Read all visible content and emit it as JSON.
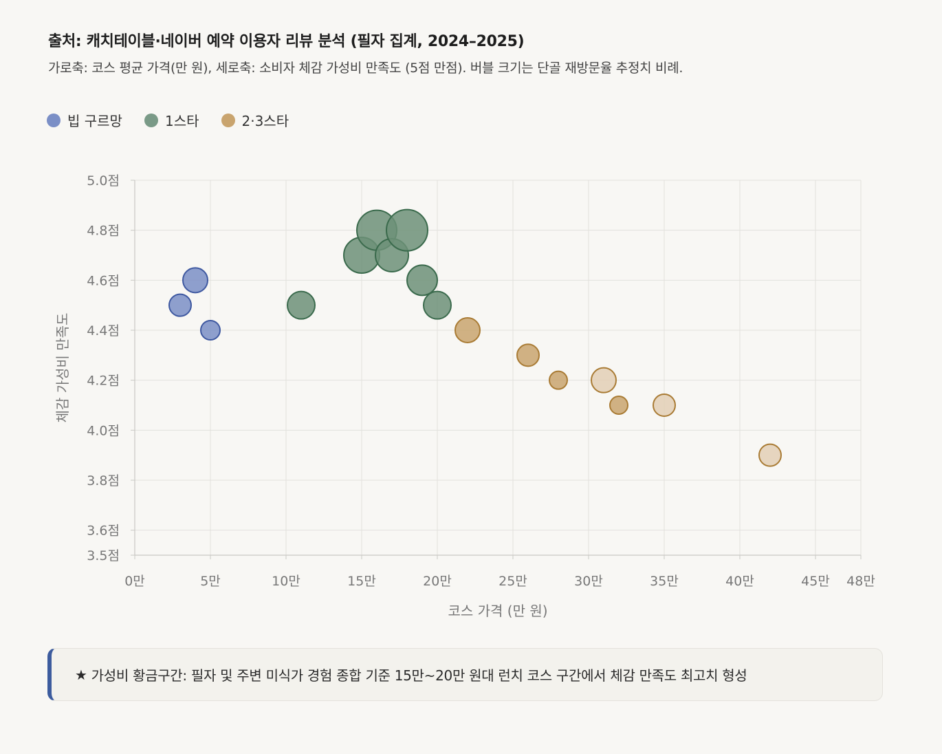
{
  "header": {
    "source": "출처: 캐치테이블·네이버 예약 이용자 리뷰 분석 (필자 집계, 2024–2025)",
    "description": "가로축: 코스 평균 가격(만 원), 세로축: 소비자 체감 가성비 만족도 (5점 만점). 버블 크기는 단골 재방문율 추정치 비례."
  },
  "legend": [
    {
      "label": "빕 구르망",
      "color": "#7b8fc6"
    },
    {
      "label": "1스타",
      "color": "#7a9a87"
    },
    {
      "label": "2·3스타",
      "color": "#c9a46e"
    }
  ],
  "callout": {
    "star_icon": "★",
    "text": "가성비 황금구간: 필자 및 주변 미식가 경험 종합 기준 15만~20만 원대 런치 코스 구간에서 체감 만족도 최고치 형성"
  },
  "chart_data": {
    "type": "scatter",
    "xlabel": "코스 가격 (만 원)",
    "ylabel": "체감 가성비 만족도",
    "xlim": [
      0,
      48
    ],
    "ylim": [
      3.5,
      5.0
    ],
    "x_ticks": [
      0,
      5,
      10,
      15,
      20,
      25,
      30,
      35,
      40,
      45,
      48
    ],
    "x_tick_labels": [
      "0만",
      "5만",
      "10만",
      "15만",
      "20만",
      "25만",
      "30만",
      "35만",
      "40만",
      "45만",
      "48만"
    ],
    "y_ticks": [
      3.5,
      3.6,
      3.8,
      4.0,
      4.2,
      4.4,
      4.6,
      4.8,
      5.0
    ],
    "y_tick_labels": [
      "3.5점",
      "3.6점",
      "3.8점",
      "4.0점",
      "4.2점",
      "4.4점",
      "4.6점",
      "4.8점",
      "5.0점"
    ],
    "grid": true,
    "legend_position": "top-left",
    "series": [
      {
        "name": "빕 구르망",
        "fill": "#7b8fc6",
        "stroke": "#3e58a0",
        "points": [
          {
            "x": 3,
            "y": 4.5,
            "size": 16
          },
          {
            "x": 4,
            "y": 4.6,
            "size": 18
          },
          {
            "x": 5,
            "y": 4.4,
            "size": 14
          }
        ]
      },
      {
        "name": "1스타",
        "fill": "#6d9078",
        "stroke": "#3a6a4c",
        "points": [
          {
            "x": 11,
            "y": 4.5,
            "size": 20
          },
          {
            "x": 15,
            "y": 4.7,
            "size": 26
          },
          {
            "x": 16,
            "y": 4.8,
            "size": 29
          },
          {
            "x": 17,
            "y": 4.7,
            "size": 24
          },
          {
            "x": 18,
            "y": 4.8,
            "size": 30
          },
          {
            "x": 19,
            "y": 4.6,
            "size": 22
          },
          {
            "x": 20,
            "y": 4.5,
            "size": 20
          }
        ]
      },
      {
        "name": "2·3스타 (2스타)",
        "fill": "#c9a46e",
        "stroke": "#a97b34",
        "points": [
          {
            "x": 22,
            "y": 4.4,
            "size": 18
          },
          {
            "x": 26,
            "y": 4.3,
            "size": 16
          },
          {
            "x": 28,
            "y": 4.2,
            "size": 13
          },
          {
            "x": 32,
            "y": 4.1,
            "size": 13
          }
        ]
      },
      {
        "name": "2·3스타 (3스타)",
        "fill": "#e3cfb5",
        "stroke": "#a97b34",
        "points": [
          {
            "x": 31,
            "y": 4.2,
            "size": 18
          },
          {
            "x": 35,
            "y": 4.1,
            "size": 16
          },
          {
            "x": 42,
            "y": 3.9,
            "size": 16
          }
        ]
      }
    ]
  }
}
